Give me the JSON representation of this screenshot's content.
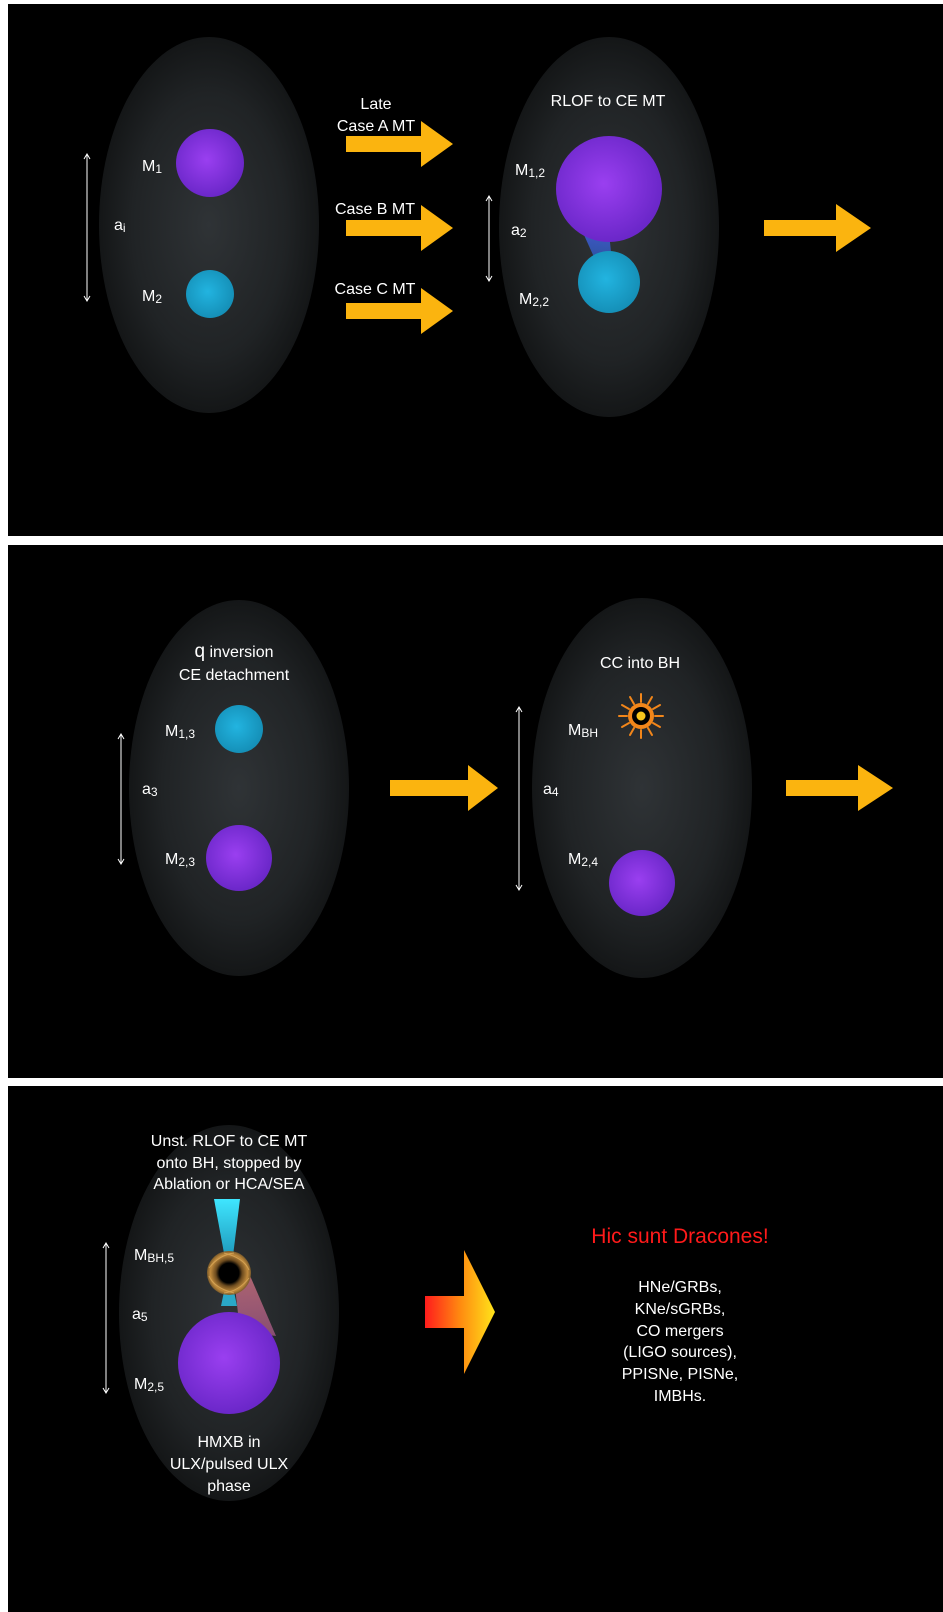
{
  "panel1": {
    "binary": {
      "m1": "M",
      "m1_sub": "1",
      "m2": "M",
      "m2_sub": "2",
      "sep": "a",
      "sep_sub": "i"
    },
    "arrows": {
      "late_line1": "Late",
      "late_line2": "Case A MT",
      "caseB": "Case B MT",
      "caseC": "Case C MT"
    },
    "rlof": {
      "title": "RLOF to CE MT",
      "m1": "M",
      "m1_sub": "1,2",
      "m2": "M",
      "m2_sub": "2,2",
      "sep": "a",
      "sep_sub": "2"
    }
  },
  "panel2": {
    "qinv": {
      "title_q": "q",
      "title_rest": " inversion",
      "title_line2": "CE detachment",
      "m1": "M",
      "m1_sub": "1,3",
      "m2": "M",
      "m2_sub": "2,3",
      "sep": "a",
      "sep_sub": "3"
    },
    "cc": {
      "title": "CC into BH",
      "mbh": "M",
      "mbh_sub": "BH",
      "m2": "M",
      "m2_sub": "2,4",
      "sep": "a",
      "sep_sub": "4"
    }
  },
  "panel3": {
    "ulx": {
      "title_lines": [
        "Unst. RLOF to CE MT",
        "onto BH, stopped by",
        "Ablation or HCA/SEA"
      ],
      "mbh": "M",
      "mbh_sub": "BH,5",
      "m2": "M",
      "m2_sub": "2,5",
      "sep": "a",
      "sep_sub": "5",
      "caption_lines": [
        "HMXB in",
        "ULX/pulsed ULX",
        "phase"
      ]
    },
    "dracones": {
      "title": "Hic sunt Dracones!",
      "list_lines": [
        "HNe/GRBs,",
        "KNe/sGRBs,",
        "CO mergers",
        "(LIGO sources),",
        "PPISNe, PISNe,",
        "IMBHs."
      ]
    }
  },
  "colors": {
    "arrow": "#fbb40f",
    "purple_star": "#7a2fdc",
    "cyan_star": "#1aa3cc",
    "title_red": "#ff1a1a",
    "panel_bg": "#000000"
  },
  "icons": {
    "bh_flare": "starburst-icon",
    "bh_accretion": "black-hole-icon"
  }
}
